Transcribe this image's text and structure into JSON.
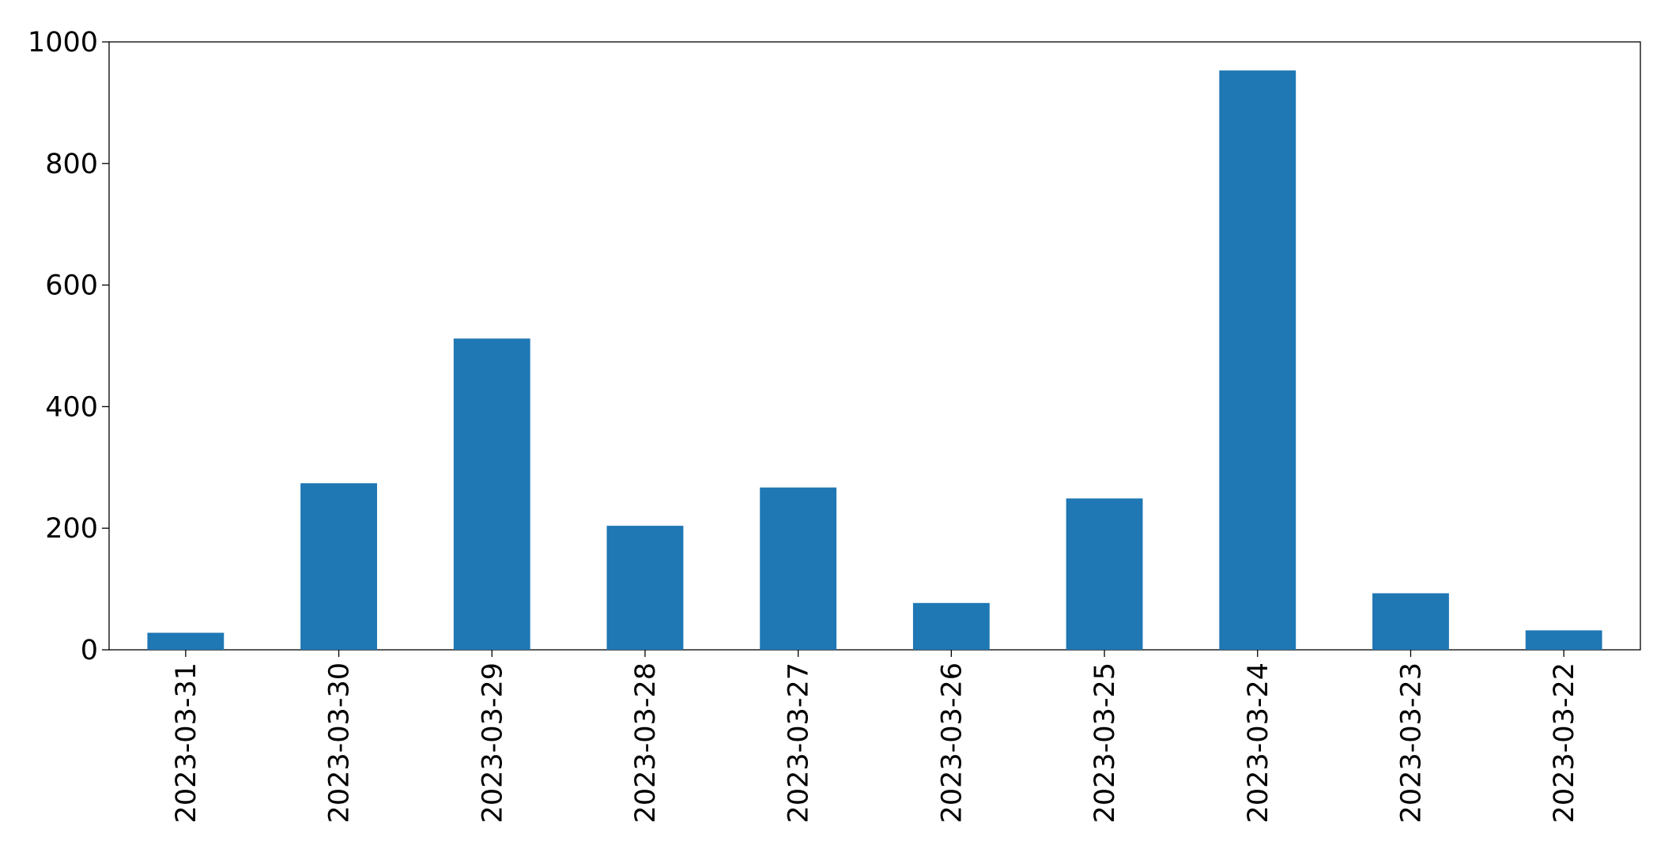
{
  "chart_data": {
    "type": "bar",
    "categories": [
      "2023-03-31",
      "2023-03-30",
      "2023-03-29",
      "2023-03-28",
      "2023-03-27",
      "2023-03-26",
      "2023-03-25",
      "2023-03-24",
      "2023-03-23",
      "2023-03-22"
    ],
    "values": [
      28,
      274,
      512,
      204,
      267,
      77,
      249,
      953,
      93,
      32
    ],
    "color": "#1f77b4",
    "ylim": [
      0,
      1000
    ],
    "yticks": [
      0,
      200,
      400,
      600,
      800,
      1000
    ],
    "grid": false
  }
}
